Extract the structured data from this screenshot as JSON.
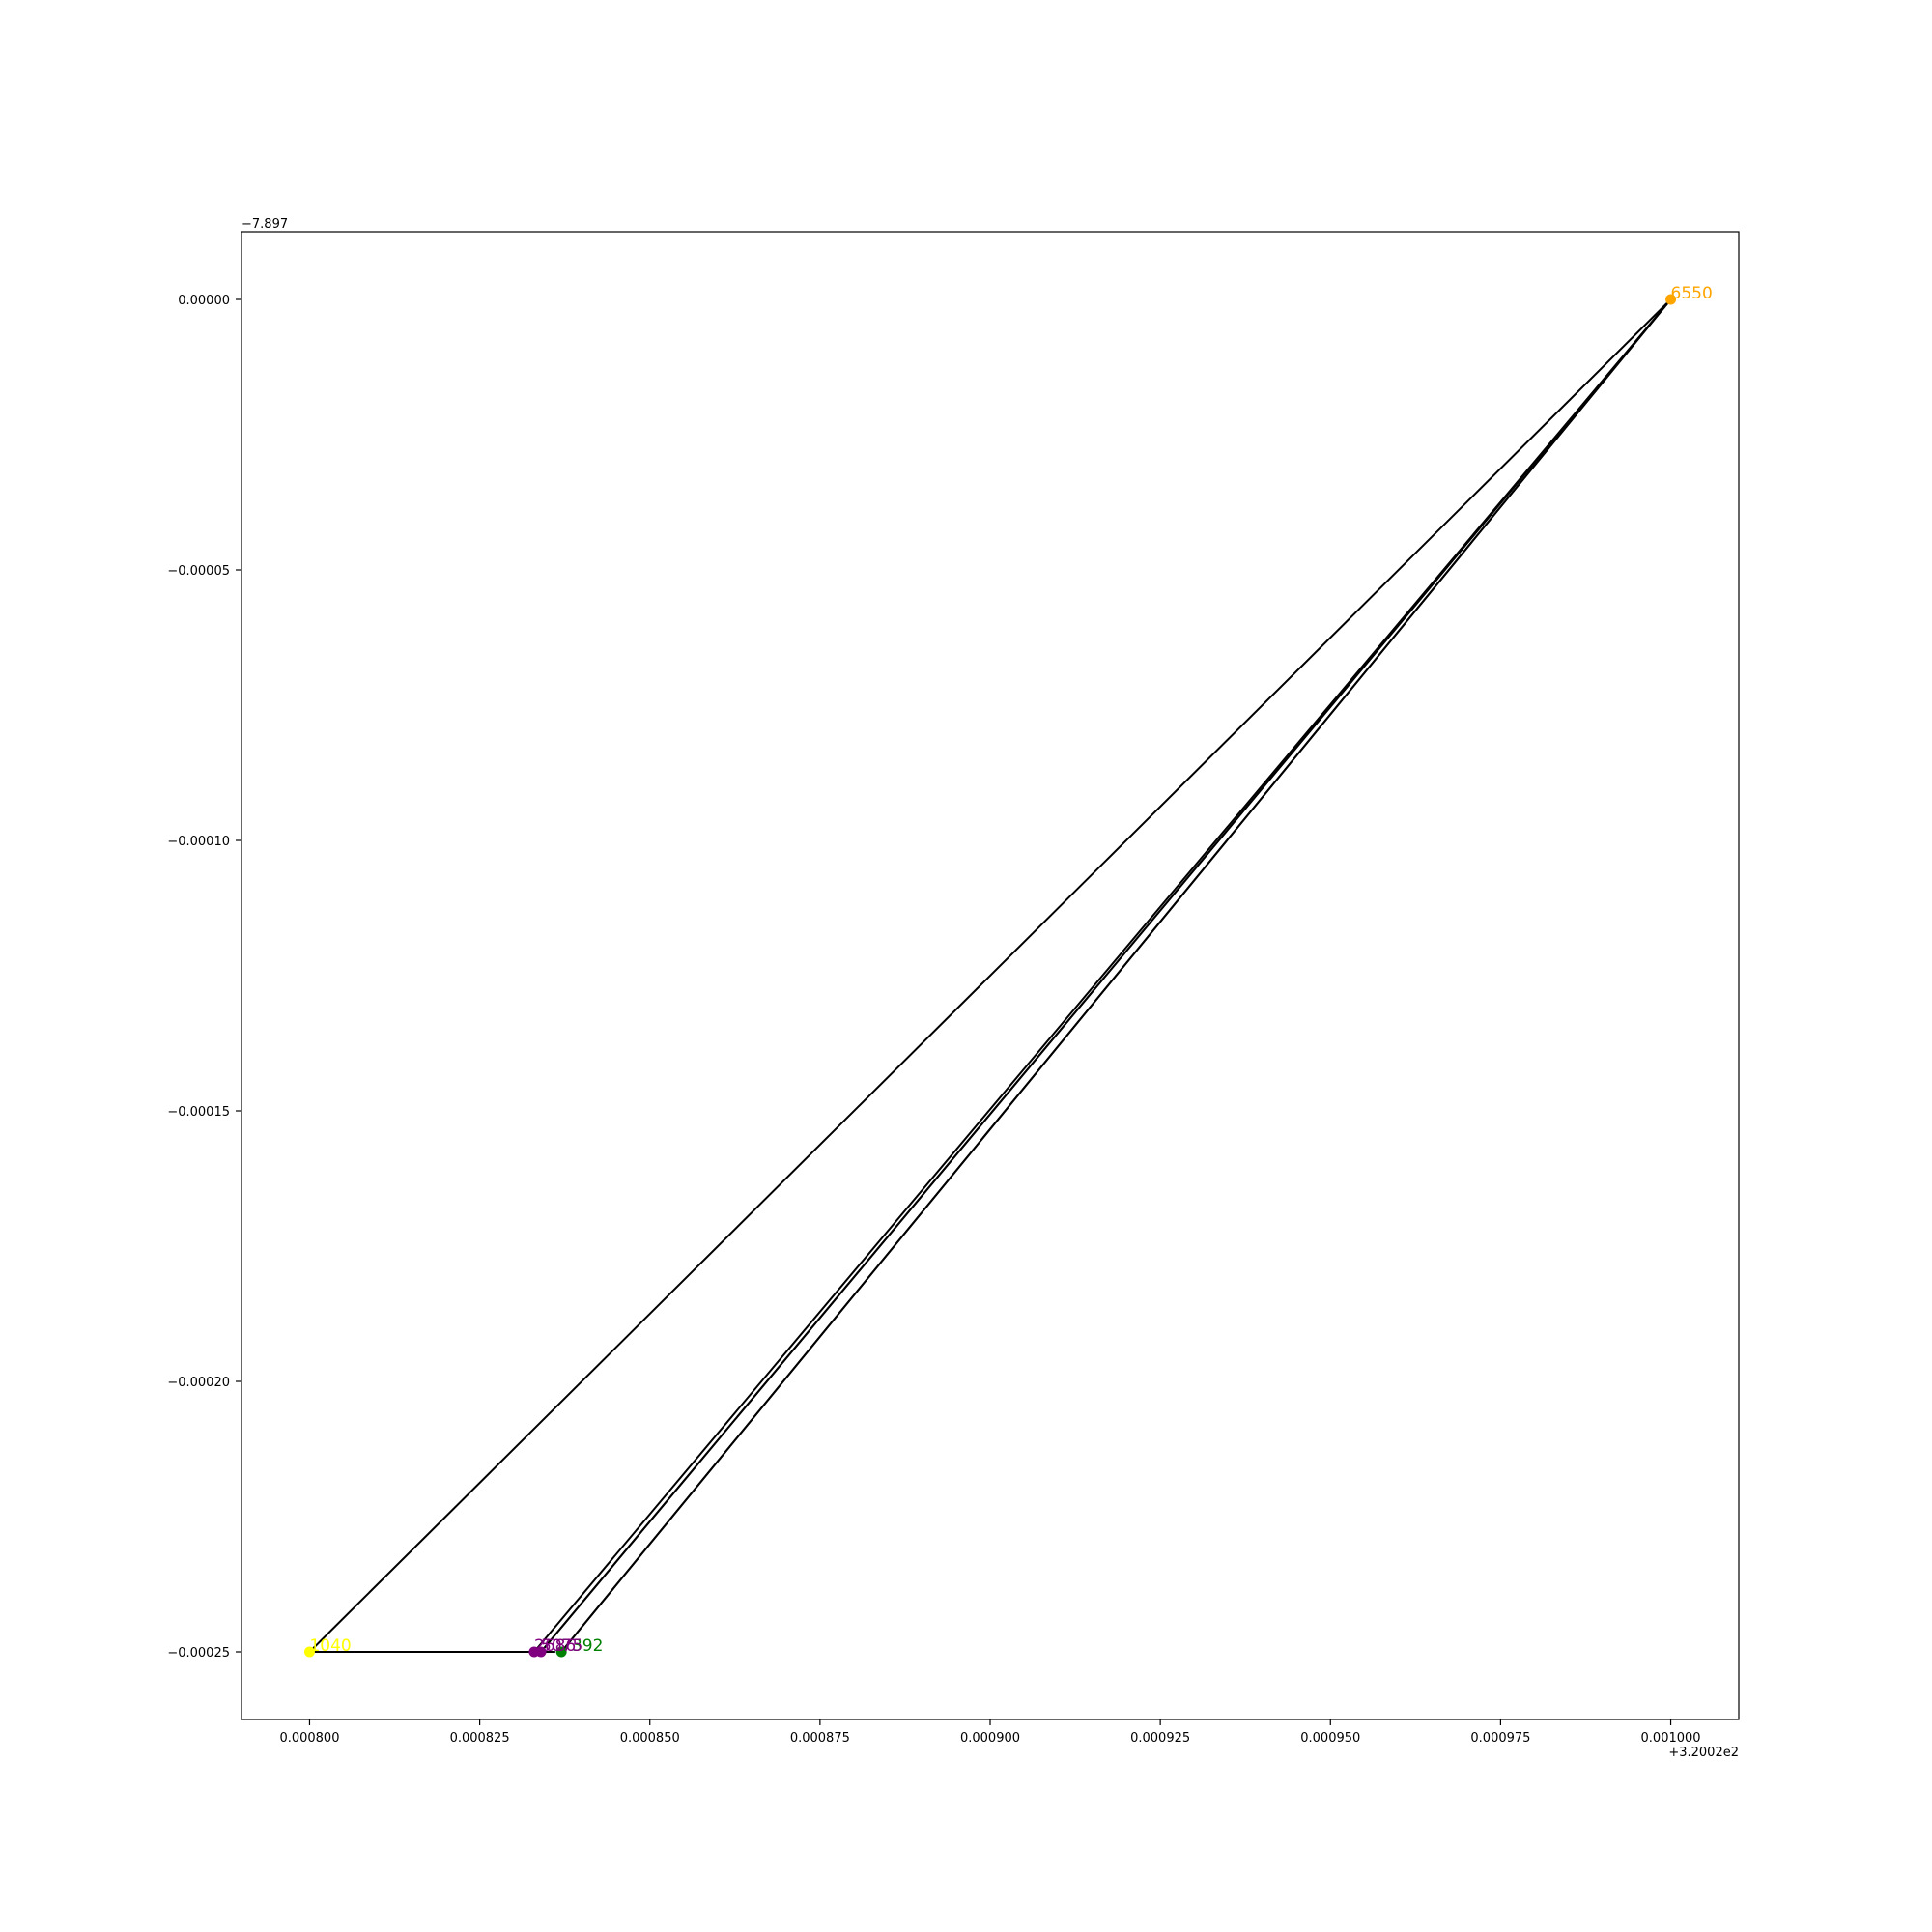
{
  "chart_data": {
    "type": "line",
    "title": "",
    "xlabel": "",
    "ylabel": "",
    "x_offset_text": "+3.2002e2",
    "y_offset_text": "−7.897",
    "xlim": [
      0.00079,
      0.00101
    ],
    "ylim": [
      -0.0002625,
      1.25e-05
    ],
    "grid": false,
    "legend": "none",
    "x_ticks": [
      {
        "value": 0.0008,
        "label": "0.000800"
      },
      {
        "value": 0.000825,
        "label": "0.000825"
      },
      {
        "value": 0.00085,
        "label": "0.000850"
      },
      {
        "value": 0.000875,
        "label": "0.000875"
      },
      {
        "value": 0.0009,
        "label": "0.000900"
      },
      {
        "value": 0.000925,
        "label": "0.000925"
      },
      {
        "value": 0.00095,
        "label": "0.000950"
      },
      {
        "value": 0.000975,
        "label": "0.000975"
      },
      {
        "value": 0.001,
        "label": "0.001000"
      }
    ],
    "y_ticks": [
      {
        "value": 0.0,
        "label": "0.00000"
      },
      {
        "value": -5e-05,
        "label": "−0.00005"
      },
      {
        "value": -0.0001,
        "label": "−0.00010"
      },
      {
        "value": -0.00015,
        "label": "−0.00015"
      },
      {
        "value": -0.0002,
        "label": "−0.00020"
      },
      {
        "value": -0.00025,
        "label": "−0.00025"
      }
    ],
    "path": {
      "color": "#000000",
      "x": [
        0.000833,
        0.001,
        0.000837,
        0.001,
        0.000834,
        0.001,
        0.0008,
        0.000836
      ],
      "y": [
        -0.00025,
        0.0,
        -0.00025,
        0.0,
        -0.00025,
        0.0,
        -0.00025,
        -0.00025
      ]
    },
    "points": [
      {
        "label": "6550",
        "x": 0.001,
        "y": 0.0,
        "color": "#ffa500"
      },
      {
        "label": "1040",
        "x": 0.0008,
        "y": -0.00025,
        "color": "#ffff00"
      },
      {
        "label": "7392",
        "x": 0.000837,
        "y": -0.00025,
        "color": "#008000"
      },
      {
        "label": "2686",
        "x": 0.000833,
        "y": -0.00025,
        "color": "#800080"
      },
      {
        "label": "5075",
        "x": 0.000834,
        "y": -0.00025,
        "color": "#800080"
      }
    ]
  }
}
